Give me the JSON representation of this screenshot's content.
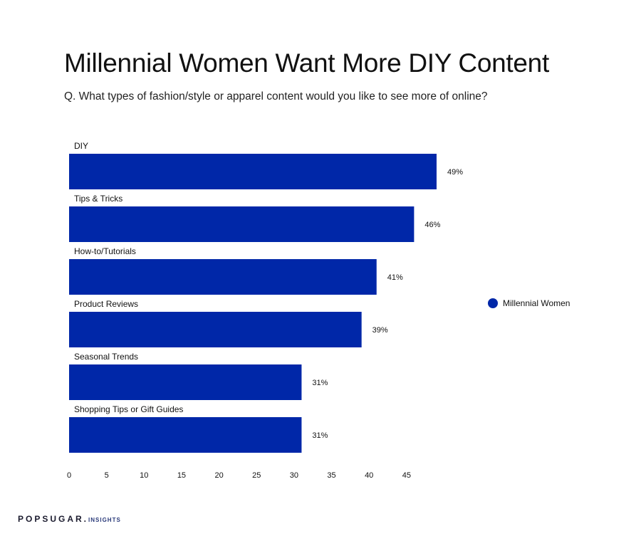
{
  "header": {
    "title": "Millennial Women Want More DIY Content",
    "subtitle": "Q. What types of fashion/style or apparel content would you like to see more of online?"
  },
  "footer": {
    "brand": "POPSUGAR.",
    "brand_sub": "INSIGHTS"
  },
  "chart_data": {
    "type": "bar",
    "orientation": "horizontal",
    "title": "",
    "xlabel": "",
    "ylabel": "",
    "categories": [
      "DIY",
      "Tips & Tricks",
      "How-to/Tutorials",
      "Product Reviews",
      "Seasonal Trends",
      "Shopping Tips or Gift Guides"
    ],
    "series": [
      {
        "name": "Millennial Women",
        "color": "#0027a8",
        "values": [
          49,
          46,
          41,
          39,
          31,
          31
        ],
        "labels": [
          "49%",
          "46%",
          "41%",
          "39%",
          "31%",
          "31%"
        ]
      }
    ],
    "xticks": [
      "0",
      "5",
      "10",
      "15",
      "20",
      "25",
      "30",
      "35",
      "40",
      "45"
    ],
    "xlim": [
      0,
      49
    ],
    "grid": false,
    "legend": "right"
  }
}
